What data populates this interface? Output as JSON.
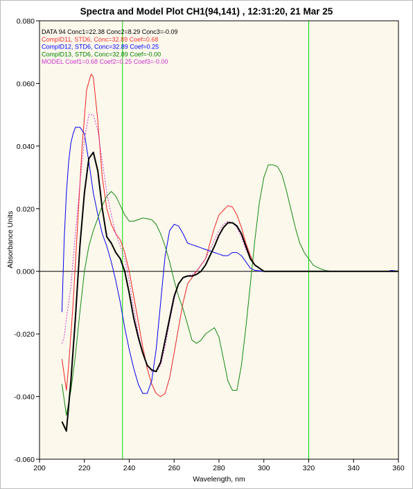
{
  "chart_data": {
    "type": "line",
    "title": "Spectra and Model Plot CH1(94,141) , 12:31:20, 21 Mar 25",
    "xlabel": "Wavelength, nm",
    "ylabel": "Absorbance Units",
    "xlim": [
      200,
      360
    ],
    "ylim": [
      -0.06,
      0.08
    ],
    "x_ticks": [
      "200",
      "220",
      "240",
      "260",
      "280",
      "300",
      "320",
      "340",
      "360"
    ],
    "y_ticks": [
      "0.080",
      "0.060",
      "0.040",
      "0.020",
      "0.000",
      "-0.020",
      "-0.040",
      "-0.060"
    ],
    "grid": false,
    "background_color": "#fcf8ec",
    "frame_color": "#000000",
    "zero_line_color": "#000000",
    "marker_line_color": "#00dd00",
    "marker_lines_x": [
      237,
      320
    ],
    "legend_position": "top-left",
    "legend": [
      {
        "text": "DATA 94 Conc1=22.38 Conc2=8.29 Conc3=-0.09",
        "color": "#000000"
      },
      {
        "text": "CompID11, STD6, Conc=32.89 Coef=0.68",
        "color": "#ff3333"
      },
      {
        "text": "CompID12, STD6, Conc=32.89 Coef=0.25",
        "color": "#0000ff"
      },
      {
        "text": "CompID13, STD6, Conc=32.89 Coef=-0.00",
        "color": "#008000"
      },
      {
        "text": "MODEL Coef1=0.68 Coef2=0.25 Coef3=-0.00",
        "color": "#cc33cc"
      }
    ],
    "series": [
      {
        "color": "#ee2222",
        "width": 1,
        "points": [
          [
            210,
            -0.028
          ],
          [
            212,
            -0.038
          ],
          [
            213,
            -0.03
          ],
          [
            215,
            -0.01
          ],
          [
            217,
            0.015
          ],
          [
            219,
            0.04
          ],
          [
            221,
            0.058
          ],
          [
            223,
            0.063
          ],
          [
            224,
            0.062
          ],
          [
            226,
            0.048
          ],
          [
            228,
            0.03
          ],
          [
            230,
            0.02
          ],
          [
            232,
            0.015
          ],
          [
            234,
            0.012
          ],
          [
            236,
            0.01
          ],
          [
            238,
            0.006
          ],
          [
            240,
            0.0
          ],
          [
            242,
            -0.008
          ],
          [
            244,
            -0.016
          ],
          [
            246,
            -0.024
          ],
          [
            248,
            -0.031
          ],
          [
            250,
            -0.036
          ],
          [
            252,
            -0.039
          ],
          [
            254,
            -0.04
          ],
          [
            256,
            -0.039
          ],
          [
            258,
            -0.034
          ],
          [
            260,
            -0.026
          ],
          [
            262,
            -0.018
          ],
          [
            264,
            -0.01
          ],
          [
            266,
            -0.004
          ],
          [
            268,
            -0.002
          ],
          [
            270,
            0.0
          ],
          [
            272,
            0.002
          ],
          [
            274,
            0.004
          ],
          [
            276,
            0.009
          ],
          [
            278,
            0.014
          ],
          [
            280,
            0.018
          ],
          [
            282,
            0.0195
          ],
          [
            284,
            0.021
          ],
          [
            286,
            0.0205
          ],
          [
            288,
            0.018
          ],
          [
            290,
            0.014
          ],
          [
            292,
            0.009
          ],
          [
            294,
            0.005
          ],
          [
            296,
            0.002
          ],
          [
            298,
            0.001
          ],
          [
            300,
            0.0
          ],
          [
            310,
            0.0
          ],
          [
            320,
            0.0
          ],
          [
            330,
            0.0
          ],
          [
            340,
            0.0
          ],
          [
            350,
            0.0
          ],
          [
            355,
            0.0
          ],
          [
            360,
            0.0
          ]
        ]
      },
      {
        "color": "#0000ee",
        "width": 1,
        "points": [
          [
            210,
            -0.013
          ],
          [
            211,
            0.01
          ],
          [
            212,
            0.025
          ],
          [
            213,
            0.035
          ],
          [
            214,
            0.041
          ],
          [
            215,
            0.044
          ],
          [
            216,
            0.046
          ],
          [
            218,
            0.046
          ],
          [
            220,
            0.044
          ],
          [
            222,
            0.035
          ],
          [
            224,
            0.025
          ],
          [
            226,
            0.018
          ],
          [
            228,
            0.012
          ],
          [
            230,
            0.008
          ],
          [
            232,
            0.003
          ],
          [
            234,
            -0.003
          ],
          [
            236,
            -0.01
          ],
          [
            238,
            -0.018
          ],
          [
            240,
            -0.025
          ],
          [
            242,
            -0.031
          ],
          [
            244,
            -0.036
          ],
          [
            246,
            -0.039
          ],
          [
            248,
            -0.039
          ],
          [
            250,
            -0.035
          ],
          [
            252,
            -0.025
          ],
          [
            254,
            -0.01
          ],
          [
            256,
            0.005
          ],
          [
            258,
            0.013
          ],
          [
            260,
            0.015
          ],
          [
            262,
            0.0145
          ],
          [
            264,
            0.012
          ],
          [
            266,
            0.009
          ],
          [
            268,
            0.0085
          ],
          [
            270,
            0.008
          ],
          [
            272,
            0.0075
          ],
          [
            274,
            0.007
          ],
          [
            276,
            0.0065
          ],
          [
            278,
            0.006
          ],
          [
            280,
            0.0055
          ],
          [
            282,
            0.005
          ],
          [
            284,
            0.005
          ],
          [
            286,
            0.006
          ],
          [
            288,
            0.006
          ],
          [
            290,
            0.005
          ],
          [
            292,
            0.003
          ],
          [
            294,
            0.001
          ],
          [
            296,
            0.0003
          ],
          [
            300,
            0.0
          ],
          [
            310,
            0.0
          ],
          [
            320,
            0.0
          ],
          [
            330,
            0.0
          ],
          [
            340,
            0.0
          ],
          [
            350,
            0.0
          ],
          [
            355,
            0.0
          ],
          [
            357,
            0.0003
          ],
          [
            360,
            0.0
          ]
        ]
      },
      {
        "color": "#118811",
        "width": 1,
        "points": [
          [
            210,
            -0.036
          ],
          [
            212,
            -0.046
          ],
          [
            214,
            -0.038
          ],
          [
            216,
            -0.027
          ],
          [
            218,
            -0.013
          ],
          [
            220,
            0.0
          ],
          [
            222,
            0.008
          ],
          [
            224,
            0.013
          ],
          [
            226,
            0.017
          ],
          [
            228,
            0.021
          ],
          [
            230,
            0.024
          ],
          [
            232,
            0.0255
          ],
          [
            234,
            0.024
          ],
          [
            236,
            0.021
          ],
          [
            238,
            0.018
          ],
          [
            240,
            0.016
          ],
          [
            242,
            0.016
          ],
          [
            244,
            0.0165
          ],
          [
            246,
            0.017
          ],
          [
            248,
            0.0168
          ],
          [
            250,
            0.0165
          ],
          [
            252,
            0.015
          ],
          [
            254,
            0.012
          ],
          [
            256,
            0.008
          ],
          [
            258,
            0.003
          ],
          [
            260,
            -0.003
          ],
          [
            262,
            -0.008
          ],
          [
            264,
            -0.012
          ],
          [
            266,
            -0.017
          ],
          [
            268,
            -0.022
          ],
          [
            270,
            -0.023
          ],
          [
            272,
            -0.022
          ],
          [
            274,
            -0.02
          ],
          [
            276,
            -0.019
          ],
          [
            278,
            -0.018
          ],
          [
            280,
            -0.021
          ],
          [
            282,
            -0.028
          ],
          [
            284,
            -0.035
          ],
          [
            286,
            -0.038
          ],
          [
            288,
            -0.038
          ],
          [
            290,
            -0.03
          ],
          [
            292,
            -0.018
          ],
          [
            294,
            -0.004
          ],
          [
            296,
            0.01
          ],
          [
            298,
            0.022
          ],
          [
            300,
            0.03
          ],
          [
            302,
            0.034
          ],
          [
            304,
            0.034
          ],
          [
            306,
            0.0335
          ],
          [
            308,
            0.031
          ],
          [
            310,
            0.026
          ],
          [
            312,
            0.02
          ],
          [
            314,
            0.014
          ],
          [
            316,
            0.009
          ],
          [
            318,
            0.006
          ],
          [
            320,
            0.004
          ],
          [
            322,
            0.002
          ],
          [
            324,
            0.0012
          ],
          [
            326,
            0.0006
          ],
          [
            328,
            0.0002
          ],
          [
            330,
            0.0
          ],
          [
            340,
            0.0
          ],
          [
            350,
            0.0
          ],
          [
            360,
            0.0
          ]
        ]
      },
      {
        "color": "#cc33cc",
        "width": 1,
        "dash": "2,2",
        "points": [
          [
            210,
            -0.023
          ],
          [
            211,
            -0.021
          ],
          [
            212,
            -0.015
          ],
          [
            214,
            -0.005
          ],
          [
            216,
            0.012
          ],
          [
            218,
            0.028
          ],
          [
            220,
            0.042
          ],
          [
            222,
            0.05
          ],
          [
            224,
            0.05
          ],
          [
            226,
            0.045
          ],
          [
            228,
            0.035
          ],
          [
            230,
            0.025
          ],
          [
            232,
            0.018
          ],
          [
            234,
            0.012
          ],
          [
            236,
            0.008
          ],
          [
            238,
            0.004
          ],
          [
            240,
            -0.003
          ],
          [
            242,
            -0.012
          ],
          [
            244,
            -0.02
          ],
          [
            246,
            -0.026
          ],
          [
            248,
            -0.03
          ],
          [
            250,
            -0.032
          ],
          [
            252,
            -0.032
          ],
          [
            254,
            -0.03
          ],
          [
            256,
            -0.024
          ],
          [
            258,
            -0.016
          ],
          [
            260,
            -0.009
          ],
          [
            262,
            -0.004
          ],
          [
            264,
            -0.002
          ],
          [
            266,
            -0.0015
          ],
          [
            268,
            -0.001
          ],
          [
            270,
            0.0
          ],
          [
            272,
            0.002
          ],
          [
            274,
            0.004
          ],
          [
            276,
            0.007
          ],
          [
            278,
            0.01
          ],
          [
            280,
            0.013
          ],
          [
            282,
            0.015
          ],
          [
            284,
            0.016
          ],
          [
            286,
            0.0155
          ],
          [
            288,
            0.014
          ],
          [
            290,
            0.011
          ],
          [
            292,
            0.007
          ],
          [
            294,
            0.004
          ],
          [
            296,
            0.002
          ],
          [
            298,
            0.001
          ],
          [
            300,
            0.0
          ],
          [
            310,
            0.0
          ],
          [
            320,
            0.0
          ],
          [
            330,
            0.0
          ],
          [
            340,
            0.0
          ],
          [
            350,
            0.0
          ],
          [
            360,
            0.0
          ]
        ]
      },
      {
        "color": "#000000",
        "width": 2,
        "points": [
          [
            210,
            -0.048
          ],
          [
            212,
            -0.051
          ],
          [
            214,
            -0.035
          ],
          [
            216,
            -0.015
          ],
          [
            218,
            0.008
          ],
          [
            220,
            0.025
          ],
          [
            222,
            0.036
          ],
          [
            224,
            0.038
          ],
          [
            226,
            0.032
          ],
          [
            228,
            0.02
          ],
          [
            230,
            0.011
          ],
          [
            232,
            0.009
          ],
          [
            234,
            0.006
          ],
          [
            236,
            0.004
          ],
          [
            238,
            0.0
          ],
          [
            240,
            -0.007
          ],
          [
            242,
            -0.015
          ],
          [
            244,
            -0.021
          ],
          [
            246,
            -0.026
          ],
          [
            248,
            -0.03
          ],
          [
            250,
            -0.0315
          ],
          [
            252,
            -0.032
          ],
          [
            254,
            -0.029
          ],
          [
            256,
            -0.022
          ],
          [
            258,
            -0.015
          ],
          [
            260,
            -0.008
          ],
          [
            262,
            -0.004
          ],
          [
            264,
            -0.002
          ],
          [
            266,
            -0.0015
          ],
          [
            268,
            -0.0015
          ],
          [
            270,
            -0.001
          ],
          [
            272,
            0.0
          ],
          [
            274,
            0.002
          ],
          [
            276,
            0.005
          ],
          [
            278,
            0.008
          ],
          [
            280,
            0.0115
          ],
          [
            282,
            0.014
          ],
          [
            284,
            0.0155
          ],
          [
            286,
            0.0155
          ],
          [
            288,
            0.0145
          ],
          [
            290,
            0.012
          ],
          [
            292,
            0.008
          ],
          [
            294,
            0.004
          ],
          [
            296,
            0.002
          ],
          [
            298,
            0.001
          ],
          [
            300,
            0.0
          ],
          [
            310,
            0.0
          ],
          [
            320,
            0.0
          ],
          [
            330,
            0.0
          ],
          [
            340,
            0.0
          ],
          [
            350,
            0.0
          ],
          [
            360,
            0.0
          ]
        ]
      }
    ]
  }
}
